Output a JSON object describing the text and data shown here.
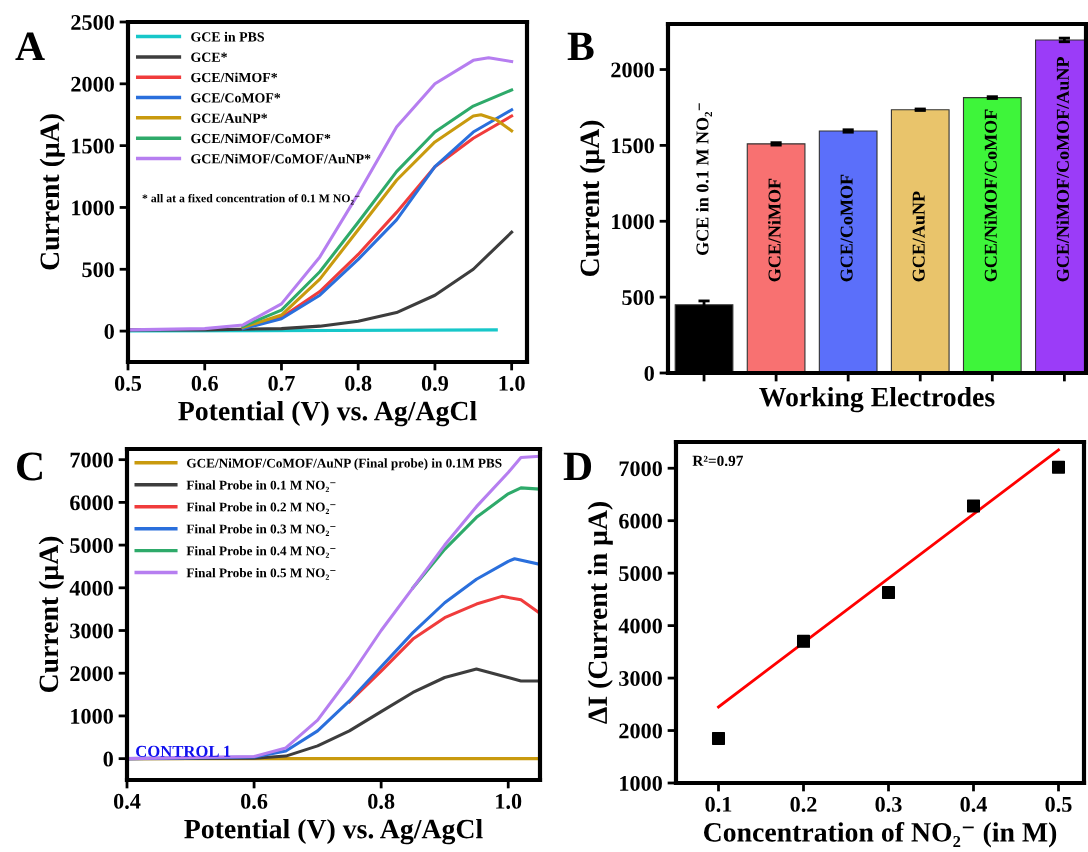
{
  "chart_data": [
    {
      "type": "line",
      "xlabel": "Potential (V) vs. Ag/AgCl",
      "ylabel": "Current (μA)",
      "xlim": [
        0.5,
        1.02
      ],
      "xticks": [
        {
          "value": 0.5,
          "label": "0.5"
        },
        {
          "value": 0.6,
          "label": "0.6"
        },
        {
          "value": 0.7,
          "label": "0.7"
        },
        {
          "value": 0.8,
          "label": "0.8"
        },
        {
          "value": 0.9,
          "label": "0.9"
        },
        {
          "value": 1.0,
          "label": "1.0"
        }
      ],
      "ylim": [
        -250,
        2500
      ],
      "yticks": [
        0,
        500,
        1000,
        1500,
        2000,
        2500
      ],
      "legend": "top left",
      "grid": false,
      "annotations": [
        "A",
        "* all at a fixed concentration of 0.1 M NO₂⁻"
      ],
      "series": [
        {
          "name": "GCE in PBS",
          "color": "#17c7c9",
          "x": [
            0.5,
            0.98
          ],
          "values": [
            0,
            10
          ]
        },
        {
          "name": "GCE*",
          "color": "#3d3d3d",
          "x": [
            0.5,
            0.6,
            0.7,
            0.75,
            0.8,
            0.85,
            0.9,
            0.95,
            1.0
          ],
          "values": [
            10,
            10,
            20,
            40,
            80,
            150,
            290,
            500,
            800
          ]
        },
        {
          "name": "GCE/NiMOF*",
          "color": "#f03c3c",
          "x": [
            0.65,
            0.7,
            0.75,
            0.8,
            0.85,
            0.9,
            0.95,
            1.0
          ],
          "values": [
            30,
            110,
            320,
            620,
            960,
            1330,
            1560,
            1740
          ]
        },
        {
          "name": "GCE/CoMOF*",
          "color": "#2a6fdc",
          "x": [
            0.65,
            0.7,
            0.75,
            0.8,
            0.85,
            0.9,
            0.95,
            1.0
          ],
          "values": [
            20,
            100,
            290,
            580,
            900,
            1330,
            1610,
            1790
          ]
        },
        {
          "name": "GCE/AuNP*",
          "color": "#c99a0e",
          "x": [
            0.65,
            0.7,
            0.75,
            0.8,
            0.85,
            0.9,
            0.95,
            0.96,
            0.98,
            1.0
          ],
          "values": [
            30,
            130,
            420,
            820,
            1220,
            1530,
            1740,
            1750,
            1710,
            1620
          ]
        },
        {
          "name": "GCE/NiMOF/CoMOF*",
          "color": "#2eaa6a",
          "x": [
            0.65,
            0.7,
            0.75,
            0.8,
            0.85,
            0.9,
            0.95,
            1.0
          ],
          "values": [
            40,
            170,
            480,
            880,
            1290,
            1610,
            1820,
            1950
          ]
        },
        {
          "name": "GCE/NiMOF/CoMOF/AuNP*",
          "color": "#b67ef0",
          "x": [
            0.5,
            0.6,
            0.65,
            0.7,
            0.75,
            0.8,
            0.85,
            0.9,
            0.95,
            0.97,
            1.0
          ],
          "values": [
            10,
            20,
            50,
            220,
            600,
            1110,
            1650,
            2000,
            2190,
            2210,
            2180
          ]
        }
      ]
    },
    {
      "type": "bar",
      "xlabel": "Working Electrodes",
      "ylabel": "Current (μA)",
      "ylim": [
        0,
        2300
      ],
      "yticks": [
        0,
        500,
        1000,
        1500,
        2000
      ],
      "tick_labels": "y",
      "grid": false,
      "annotations": [
        "B"
      ],
      "categories": [
        "GCE in 0.1 M NO₂⁻",
        "GCE/NiMOF",
        "GCE/CoMOF",
        "GCE/AuNP",
        "GCE/NiMOF/CoMOF",
        "GCE/NiMOF/CoMOF/AuNP"
      ],
      "values": [
        450,
        1510,
        1595,
        1735,
        1815,
        2195
      ],
      "errors": [
        25,
        8,
        8,
        5,
        6,
        12
      ],
      "colors": [
        "#000000",
        "#f87171",
        "#5b6ffa",
        "#e9c46b",
        "#3ef53a",
        "#9b3cf8"
      ]
    },
    {
      "type": "line",
      "xlabel": "Potential (V) vs. Ag/AgCl",
      "ylabel": "Current (μA)",
      "xlim": [
        0.4,
        1.05
      ],
      "xticks": [
        {
          "value": 0.4,
          "label": "0.4"
        },
        {
          "value": 0.6,
          "label": "0.6"
        },
        {
          "value": 0.8,
          "label": "0.8"
        },
        {
          "value": 1.0,
          "label": "1.0"
        }
      ],
      "ylim": [
        -500,
        7250
      ],
      "yticks": [
        0,
        1000,
        2000,
        3000,
        4000,
        5000,
        6000,
        7000
      ],
      "legend": "top left",
      "grid": false,
      "annotations": [
        "C",
        "CONTROL 1"
      ],
      "series": [
        {
          "name": "GCE/NiMOF/CoMOF/AuNP (Final probe) in 0.1M PBS",
          "color": "#c99a0e",
          "x": [
            0.4,
            1.05
          ],
          "values": [
            0,
            0
          ]
        },
        {
          "name": "Final Probe in 0.1 M NO₂⁻",
          "color": "#3d3d3d",
          "x": [
            0.4,
            0.6,
            0.65,
            0.7,
            0.75,
            0.8,
            0.85,
            0.9,
            0.95,
            1.0,
            1.02,
            1.05
          ],
          "values": [
            0,
            10,
            60,
            300,
            650,
            1100,
            1550,
            1900,
            2100,
            1900,
            1820,
            1820
          ]
        },
        {
          "name": "Final Probe in 0.2 M NO₂⁻",
          "color": "#f03c3c",
          "x": [
            0.75,
            0.8,
            0.85,
            0.9,
            0.95,
            0.99,
            1.02,
            1.05
          ],
          "values": [
            1330,
            2050,
            2800,
            3300,
            3620,
            3800,
            3720,
            3400
          ]
        },
        {
          "name": "Final Probe in 0.3 M NO₂⁻",
          "color": "#2a6fdc",
          "x": [
            0.4,
            0.6,
            0.65,
            0.7,
            0.75,
            0.8,
            0.85,
            0.9,
            0.95,
            1.0,
            1.01,
            1.05
          ],
          "values": [
            0,
            40,
            180,
            650,
            1350,
            2150,
            2950,
            3650,
            4200,
            4620,
            4680,
            4550
          ]
        },
        {
          "name": "Final Probe in 0.4 M NO₂⁻",
          "color": "#2eaa6a",
          "x": [
            0.85,
            0.9,
            0.95,
            1.0,
            1.02,
            1.05
          ],
          "values": [
            4000,
            4900,
            5650,
            6200,
            6340,
            6310
          ]
        },
        {
          "name": "Final Probe in 0.5 M NO₂⁻",
          "color": "#b67ef0",
          "x": [
            0.4,
            0.6,
            0.65,
            0.7,
            0.75,
            0.8,
            0.85,
            0.9,
            0.95,
            1.0,
            1.02,
            1.05
          ],
          "values": [
            0,
            50,
            250,
            900,
            1900,
            3000,
            4000,
            5000,
            5900,
            6700,
            7050,
            7080
          ]
        }
      ]
    },
    {
      "type": "scatter",
      "xlabel": "Concentration of NO₂⁻ (in M)",
      "ylabel": "ΔI (Current in μA)",
      "xlim": [
        0.05,
        0.53
      ],
      "xticks": [
        {
          "value": 0.1,
          "label": "0.1"
        },
        {
          "value": 0.2,
          "label": "0.2"
        },
        {
          "value": 0.3,
          "label": "0.3"
        },
        {
          "value": 0.4,
          "label": "0.4"
        },
        {
          "value": 0.5,
          "label": "0.5"
        }
      ],
      "ylim": [
        1000,
        7500
      ],
      "yticks": [
        1000,
        2000,
        3000,
        4000,
        5000,
        6000,
        7000
      ],
      "grid": false,
      "annotations": [
        "D",
        "R²=0.97"
      ],
      "series": [
        {
          "color": "#000000",
          "marker": "square",
          "x": [
            0.1,
            0.2,
            0.3,
            0.4,
            0.5
          ],
          "values": [
            1850,
            3700,
            4630,
            6280,
            7020
          ]
        },
        {
          "type": "line",
          "color": "#ff0000",
          "x": [
            0.1,
            0.5
          ],
          "values": [
            2450,
            7350
          ]
        }
      ]
    }
  ]
}
